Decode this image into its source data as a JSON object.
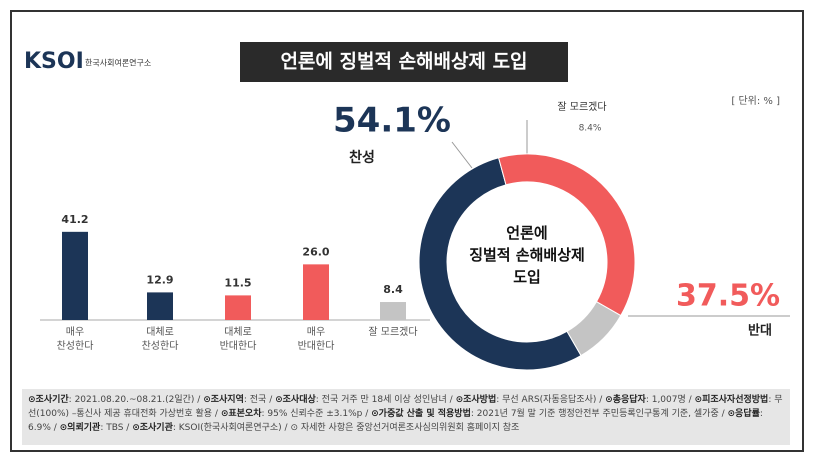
{
  "header": {
    "logo": "KSOI",
    "org": "한국사회여론연구소",
    "title": "언론에 징벌적 손해배상제 도입",
    "unit": "[ 단위: % ]"
  },
  "chart_data": [
    {
      "type": "bar",
      "categories": [
        "매우\n찬성한다",
        "대체로\n찬성한다",
        "대체로\n반대한다",
        "매우\n반대한다",
        "잘 모르겠다"
      ],
      "values": [
        41.2,
        12.9,
        11.5,
        26.0,
        8.4
      ],
      "value_labels": [
        "41.2",
        "12.9",
        "11.5",
        "26.0",
        "8.4"
      ],
      "colors": [
        "#1c3557",
        "#1c3557",
        "#f15b5b",
        "#f15b5b",
        "#c4c4c4"
      ]
    },
    {
      "type": "pie",
      "categories": [
        "찬성",
        "반대",
        "잘 모르겠다"
      ],
      "values": [
        54.1,
        37.5,
        8.4
      ],
      "value_labels": [
        "54.1%",
        "37.5%",
        "8.4%"
      ],
      "colors": [
        "#1c3557",
        "#f15b5b",
        "#c4c4c4"
      ],
      "center_label": "언론에\n징벌적 손해배상제\n도입"
    }
  ],
  "footer": {
    "items": [
      {
        "label": "⊙조사기간",
        "text": ": 2021.08.20.~08.21.(2일간) /"
      },
      {
        "label": "⊙조사지역",
        "text": ": 전국 /"
      },
      {
        "label": "⊙조사대상",
        "text": ": 전국 거주 만 18세 이상 성인남녀 /"
      },
      {
        "label": "⊙조사방법",
        "text": ": 무선 ARS(자동응답조사) /"
      },
      {
        "label": "⊙총응답자",
        "text": ": 1,007명 /"
      },
      {
        "label": "⊙피조사자선정방법",
        "text": ": 무선(100%) –통신사 제공 휴대전화 가상번호 활용 /"
      },
      {
        "label": "⊙표본오차",
        "text": ": 95% 신뢰수준 ±3.1%p /"
      },
      {
        "label": "⊙가중값 산출 및 적용방법",
        "text": ": 2021년 7월 말 기준 행정안전부 주민등록인구통계 기준, 셀가중 /"
      },
      {
        "label": "⊙응답률",
        "text": ": 6.9% /"
      },
      {
        "label": "⊙의뢰기관",
        "text": ": TBS /"
      },
      {
        "label": "⊙조사기관",
        "text": ": KSOI(한국사회여론연구소) /"
      },
      {
        "text": "⊙ 자세한 사항은 중앙선거여론조사심의위원회 홈페이지 참조"
      }
    ]
  }
}
